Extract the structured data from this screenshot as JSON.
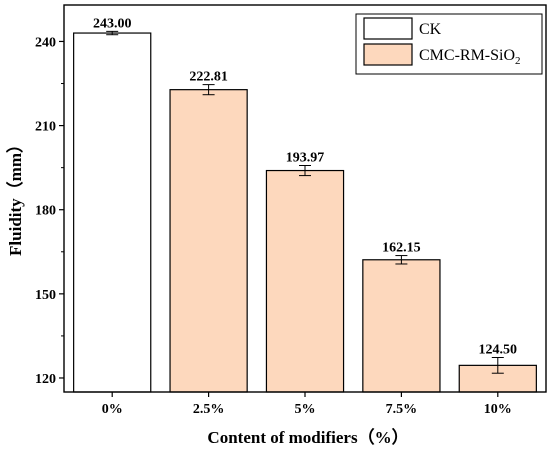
{
  "chart_data": {
    "type": "bar",
    "categories": [
      "0%",
      "2.5%",
      "5%",
      "7.5%",
      "10%"
    ],
    "values": [
      243.0,
      222.81,
      193.97,
      162.15,
      124.5
    ],
    "value_labels": [
      "243.00",
      "222.81",
      "193.97",
      "162.15",
      "124.50"
    ],
    "errors": [
      0.6,
      1.8,
      1.8,
      1.5,
      2.8
    ],
    "series_index": [
      0,
      1,
      1,
      1,
      1
    ],
    "series": [
      {
        "name": "CK",
        "color": "#ffffff"
      },
      {
        "name_main": "CMC-RM-SiO",
        "name_sub": "2",
        "color": "#fdd8bd"
      }
    ],
    "xlabel": "Content of modifiers（%）",
    "ylabel": "Fluidity（mm）",
    "ylim": [
      115,
      253
    ],
    "yticks": [
      120,
      150,
      180,
      210,
      240
    ],
    "ytick_labels": [
      "120",
      "150",
      "180",
      "210",
      "240"
    ],
    "legend_position": "top-right",
    "grid": false
  }
}
